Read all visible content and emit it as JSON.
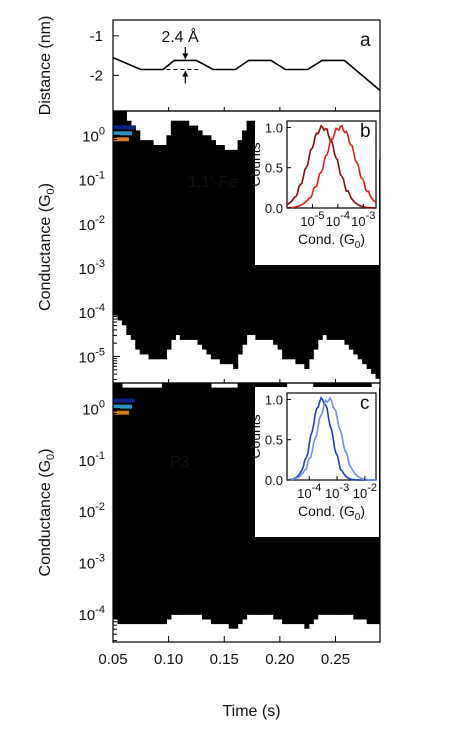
{
  "chart_data": [
    {
      "panel_label": "a",
      "type": "line",
      "ylabel": "Distance (nm)",
      "y_tick_labels": [
        "-1",
        "-2"
      ],
      "ylim": [
        -2.9,
        -0.6
      ],
      "xlim": [
        0.05,
        0.29
      ],
      "annotation": "2.4 Å",
      "series": [
        {
          "x": [
            0.05,
            0.075,
            0.095,
            0.105,
            0.125,
            0.14,
            0.16,
            0.172,
            0.192,
            0.205,
            0.225,
            0.238,
            0.258,
            0.29
          ],
          "y": [
            -1.55,
            -1.85,
            -1.85,
            -1.62,
            -1.62,
            -1.85,
            -1.85,
            -1.62,
            -1.62,
            -1.85,
            -1.85,
            -1.62,
            -1.62,
            -2.38
          ]
        }
      ],
      "color": "#000000"
    },
    {
      "panel_label": "b",
      "type": "heatmap",
      "annotation": "1,1'-Fe",
      "ylabel": "Conductance (G0)",
      "ylabel_parts": {
        "main": "Conductance (G",
        "sub": "0",
        "end": ")"
      },
      "y_log_exponents": [
        0,
        -1,
        -2,
        -3,
        -4,
        -5
      ],
      "ylim_log10": [
        -5.6,
        0.55
      ],
      "xlim": [
        0.05,
        0.29
      ],
      "band_center_log10": {
        "x": [
          0.05,
          0.06,
          0.07,
          0.075,
          0.095,
          0.105,
          0.125,
          0.14,
          0.16,
          0.172,
          0.192,
          0.205,
          0.225,
          0.238,
          0.258,
          0.29
        ],
        "y": [
          -3.0,
          -3.4,
          -3.8,
          -4.0,
          -4.2,
          -3.6,
          -3.7,
          -4.1,
          -4.3,
          -3.6,
          -3.7,
          -4.1,
          -4.3,
          -3.6,
          -3.7,
          -4.6
        ]
      },
      "inset": {
        "type": "line",
        "ylabel": "Counts",
        "xlabel": "Cond. (G0)",
        "xlabel_parts": {
          "main": "Cond. (G",
          "sub": "0",
          "end": ")"
        },
        "y_tick_labels": [
          "0.0",
          "0.5",
          "1.0"
        ],
        "x_log_exponents": [
          -5,
          -4,
          -3
        ],
        "xlim_log10": [
          -6.0,
          -2.5
        ],
        "series": [
          {
            "color": "#8b0a0a",
            "peak_log10": -4.6,
            "width": 0.55
          },
          {
            "color": "#e41a1c",
            "peak_log10": -3.9,
            "width": 0.6
          }
        ]
      }
    },
    {
      "panel_label": "c",
      "type": "heatmap",
      "annotation": "P3",
      "ylabel": "Conductance (G0)",
      "ylabel_parts": {
        "main": "Conductance (G",
        "sub": "0",
        "end": ")"
      },
      "y_log_exponents": [
        0,
        -1,
        -2,
        -3,
        -4
      ],
      "ylim_log10": [
        -4.55,
        0.5
      ],
      "xlim": [
        0.05,
        0.29
      ],
      "band_center_log10": {
        "x": [
          0.05,
          0.06,
          0.075,
          0.095,
          0.105,
          0.125,
          0.14,
          0.16,
          0.172,
          0.192,
          0.205,
          0.225,
          0.238,
          0.258,
          0.29
        ],
        "y": [
          -3.4,
          -3.5,
          -3.5,
          -3.5,
          -3.3,
          -3.3,
          -3.5,
          -3.55,
          -3.3,
          -3.3,
          -3.5,
          -3.55,
          -3.3,
          -3.3,
          -3.55
        ]
      },
      "inset": {
        "type": "line",
        "ylabel": "Counts",
        "xlabel": "Cond. (G0)",
        "xlabel_parts": {
          "main": "Cond. (G",
          "sub": "0",
          "end": ")"
        },
        "y_tick_labels": [
          "0.0",
          "0.5",
          "1.0"
        ],
        "x_log_exponents": [
          -4,
          -3,
          -2
        ],
        "xlim_log10": [
          -4.8,
          -1.6
        ],
        "series": [
          {
            "color": "#1f3fbf",
            "peak_log10": -3.55,
            "width": 0.35
          },
          {
            "color": "#6f8fe8",
            "peak_log10": -3.3,
            "width": 0.42
          }
        ]
      }
    }
  ],
  "x_axis": {
    "label": "Time (s)",
    "tick_labels": [
      "0.05",
      "0.10",
      "0.15",
      "0.20",
      "0.25"
    ],
    "ticks": [
      0.05,
      0.1,
      0.15,
      0.2,
      0.25
    ]
  }
}
